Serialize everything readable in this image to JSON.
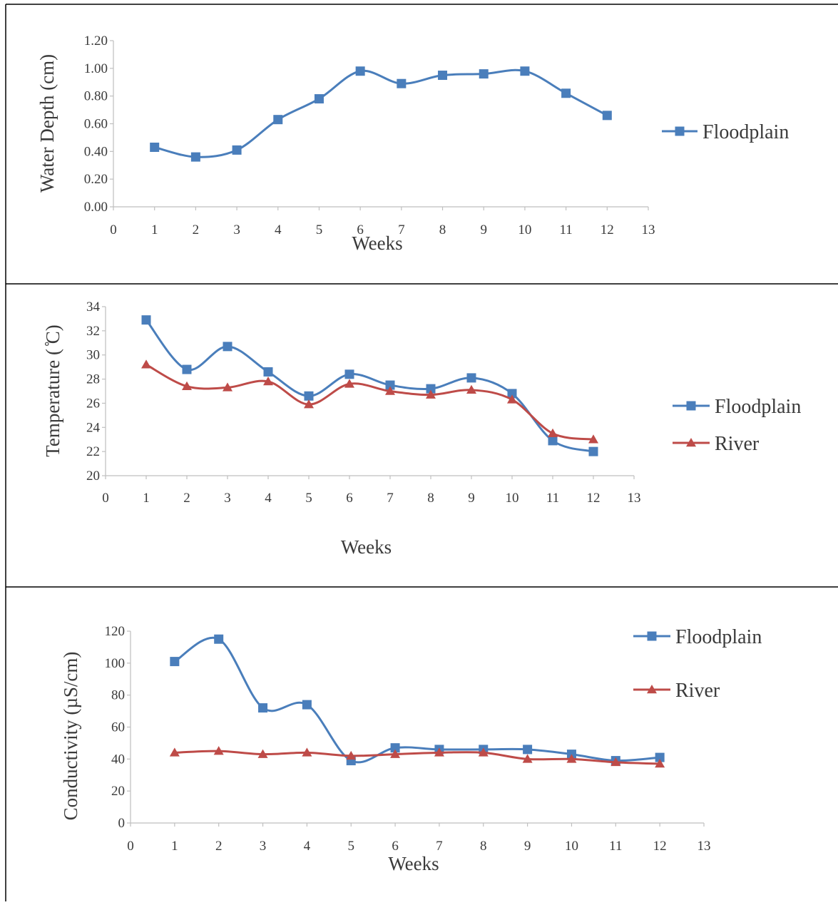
{
  "colors": {
    "floodplain": "#4a7ebb",
    "river": "#be4b48",
    "axis": "#bfbfbf",
    "border": "#000000"
  },
  "chart_data": [
    {
      "type": "line",
      "xlabel": "Weeks",
      "ylabel": "Water Depth (cm)",
      "xlim": [
        0,
        13
      ],
      "ylim": [
        0,
        1.2
      ],
      "xticks": [
        "0",
        "1",
        "2",
        "3",
        "4",
        "5",
        "6",
        "7",
        "8",
        "9",
        "10",
        "11",
        "12",
        "13"
      ],
      "yticks": [
        "0.00",
        "0.20",
        "0.40",
        "0.60",
        "0.80",
        "1.00",
        "1.20"
      ],
      "legend_position": "right",
      "grid": false,
      "series": [
        {
          "name": "Floodplain",
          "marker": "square",
          "x": [
            1,
            2,
            3,
            4,
            5,
            6,
            7,
            8,
            9,
            10,
            11,
            12
          ],
          "values": [
            0.43,
            0.36,
            0.41,
            0.63,
            0.78,
            0.98,
            0.89,
            0.95,
            0.96,
            0.98,
            0.82,
            0.66
          ]
        }
      ]
    },
    {
      "type": "line",
      "xlabel": "Weeks",
      "ylabel": "Temperature ( ̊C)",
      "xlim": [
        0,
        13
      ],
      "ylim": [
        20,
        34
      ],
      "xticks": [
        "0",
        "1",
        "2",
        "3",
        "4",
        "5",
        "6",
        "7",
        "8",
        "9",
        "10",
        "11",
        "12",
        "13"
      ],
      "yticks": [
        "20",
        "22",
        "24",
        "26",
        "28",
        "30",
        "32",
        "34"
      ],
      "legend_position": "right",
      "grid": false,
      "series": [
        {
          "name": "Floodplain",
          "marker": "square",
          "x": [
            1,
            2,
            3,
            4,
            5,
            6,
            7,
            8,
            9,
            10,
            11,
            12
          ],
          "values": [
            32.9,
            28.8,
            30.7,
            28.6,
            26.6,
            28.4,
            27.5,
            27.2,
            28.1,
            26.8,
            22.9,
            22.0
          ]
        },
        {
          "name": "River",
          "marker": "triangle",
          "x": [
            1,
            2,
            3,
            4,
            5,
            6,
            7,
            8,
            9,
            10,
            11,
            12
          ],
          "values": [
            29.2,
            27.4,
            27.3,
            27.8,
            25.9,
            27.6,
            27.0,
            26.7,
            27.1,
            26.3,
            23.5,
            23.0
          ]
        }
      ]
    },
    {
      "type": "line",
      "xlabel": "Weeks",
      "ylabel": "Conductivity (µS/cm)",
      "xlim": [
        0,
        13
      ],
      "ylim": [
        0,
        120
      ],
      "xticks": [
        "0",
        "1",
        "2",
        "3",
        "4",
        "5",
        "6",
        "7",
        "8",
        "9",
        "10",
        "11",
        "12",
        "13"
      ],
      "yticks": [
        "0",
        "20",
        "40",
        "60",
        "80",
        "100",
        "120"
      ],
      "legend_position": "top-right",
      "grid": false,
      "series": [
        {
          "name": "Floodplain",
          "marker": "square",
          "x": [
            1,
            2,
            3,
            4,
            5,
            6,
            7,
            8,
            9,
            10,
            11,
            12
          ],
          "values": [
            101,
            115,
            72,
            74,
            39,
            47,
            46,
            46,
            46,
            43,
            39,
            41
          ]
        },
        {
          "name": "River",
          "marker": "triangle",
          "x": [
            1,
            2,
            3,
            4,
            5,
            6,
            7,
            8,
            9,
            10,
            11,
            12
          ],
          "values": [
            44,
            45,
            43,
            44,
            42,
            43,
            44,
            44,
            40,
            40,
            38,
            37
          ]
        }
      ]
    }
  ]
}
